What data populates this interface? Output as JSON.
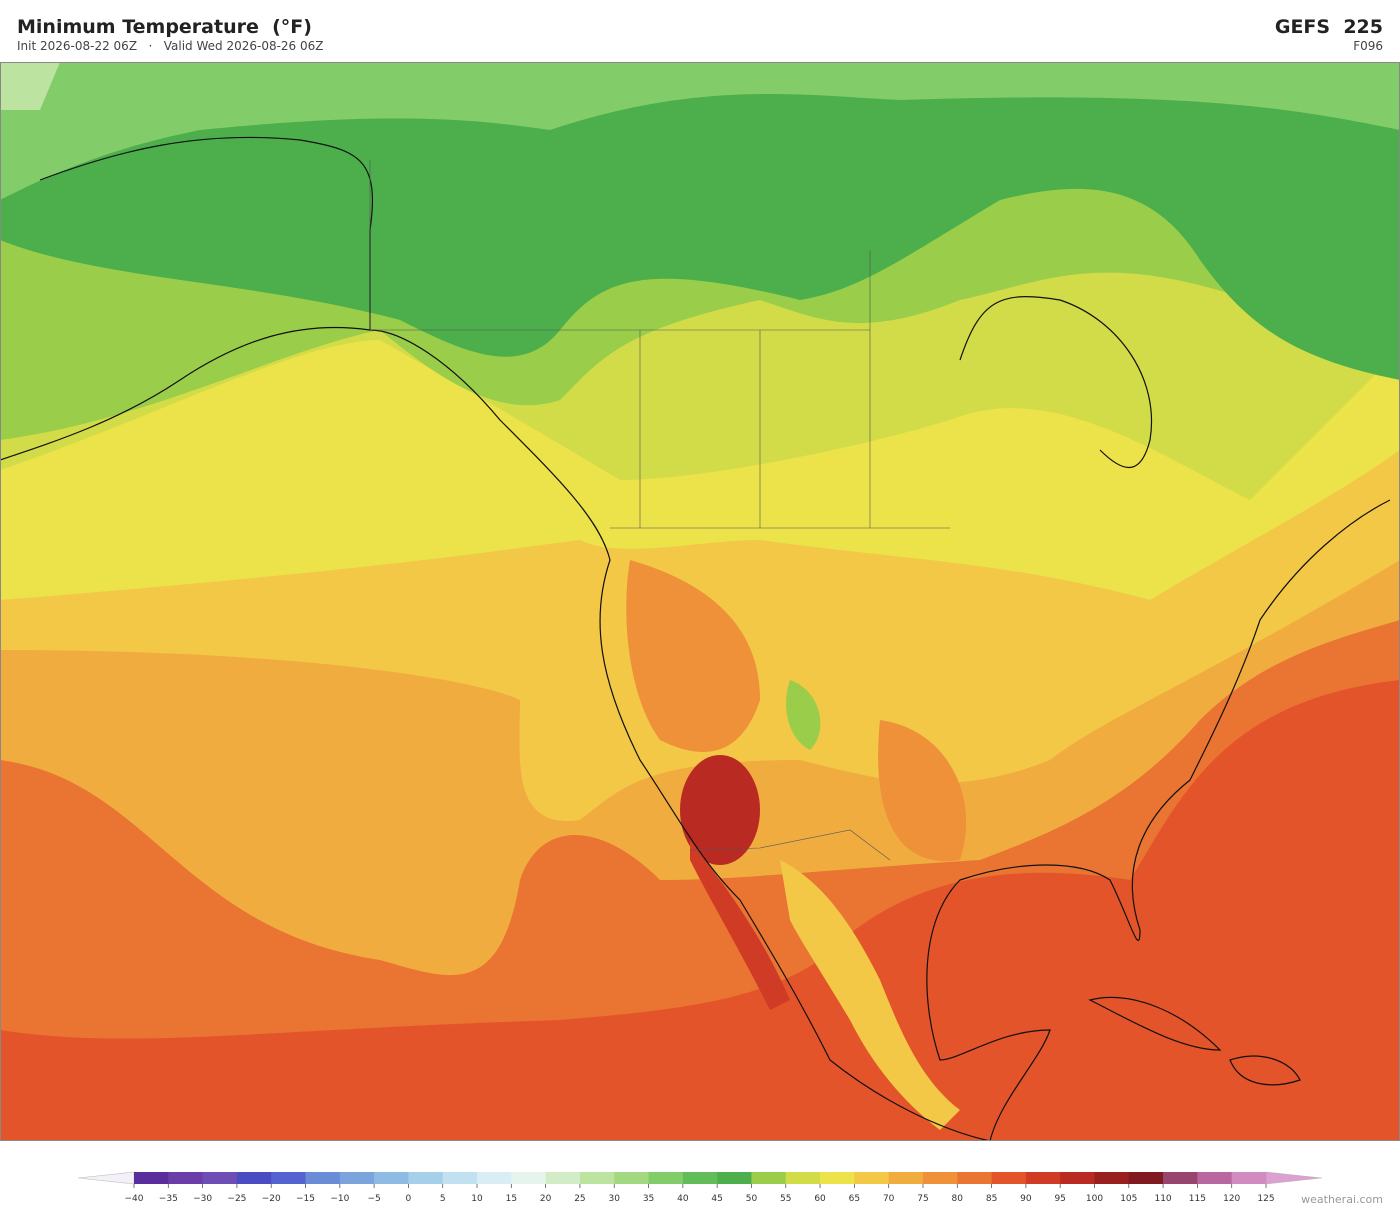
{
  "header": {
    "title": "Minimum Temperature  (°F)",
    "subtitle": "Init 2026-08-22 06Z   ·   Valid Wed 2026-08-26 06Z",
    "model": "GEFS  225",
    "forecast_hour": "F096"
  },
  "colorbar": {
    "ticks": [
      {
        "value": -40,
        "label": "−40"
      },
      {
        "value": -35,
        "label": "−35"
      },
      {
        "value": -30,
        "label": "−30"
      },
      {
        "value": -25,
        "label": "−25"
      },
      {
        "value": -20,
        "label": "−20"
      },
      {
        "value": -15,
        "label": "−15"
      },
      {
        "value": -10,
        "label": "−10"
      },
      {
        "value": -5,
        "label": "−5"
      },
      0,
      5,
      10,
      15,
      20,
      25,
      30,
      35,
      40,
      45,
      50,
      55,
      60,
      65,
      70,
      75,
      80,
      85,
      90,
      95,
      100,
      105,
      110,
      115,
      120,
      125
    ],
    "colors": [
      "#5a2d9c",
      "#6a3da8",
      "#6e4db5",
      "#4a4cc0",
      "#5463cf",
      "#6a8bd6",
      "#7ba3dc",
      "#8dbbe3",
      "#a6d0ea",
      "#c2e1f0",
      "#d9edf4",
      "#e6f4ee",
      "#d3ecc8",
      "#bde3a0",
      "#a2d880",
      "#83cc6a",
      "#62bd58",
      "#4caf4b",
      "#9acd4a",
      "#d2dc48",
      "#ece24a",
      "#f3c846",
      "#f1ac40",
      "#ee9138",
      "#ea7432",
      "#e4542a",
      "#cf3b25",
      "#b82a22",
      "#98201f",
      "#7f1a1e",
      "#98446f",
      "#b8689e",
      "#d08cc0"
    ],
    "under_color": "#f4f0f8",
    "over_color": "#dda0d0"
  },
  "footer": {
    "credit": "weatherai.com"
  }
}
